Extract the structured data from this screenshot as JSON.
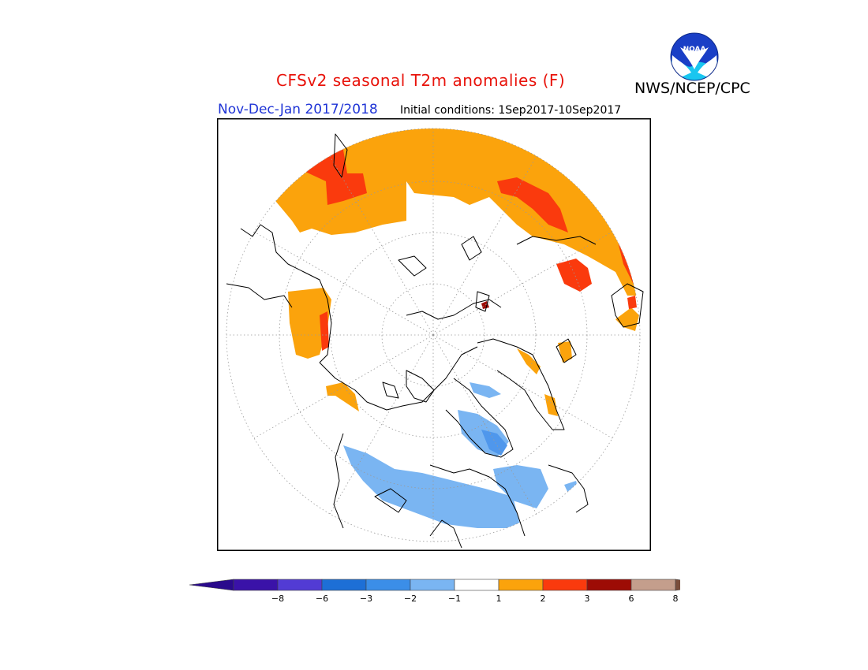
{
  "title": "CFSv2 seasonal T2m anomalies (F)",
  "agency": "NWS/NCEP/CPC",
  "logo_text": "NOAA",
  "season": "Nov-Dec-Jan 2017/2018",
  "initial_conditions": "Initial conditions: 1Sep2017-10Sep2017",
  "colors": {
    "title": "#e8130b",
    "season": "#1f34d6",
    "warm_1_2": "#fba30c",
    "warm_2_3": "#fa3a0d",
    "cool_1_2": "#7ab5f2",
    "cool_2_3": "#4f97ec"
  },
  "colorbar": {
    "tick_labels": [
      "-8",
      "-6",
      "-3",
      "-2",
      "-1",
      "1",
      "2",
      "3",
      "6",
      "8"
    ],
    "bins": [
      {
        "color": "#3a12a8"
      },
      {
        "color": "#523bd4"
      },
      {
        "color": "#1d6fd6"
      },
      {
        "color": "#3b8ee8"
      },
      {
        "color": "#7ab5f2"
      },
      {
        "color": "#ffffff"
      },
      {
        "color": "#fba30c"
      },
      {
        "color": "#fa3a0d"
      },
      {
        "color": "#9d0c05"
      },
      {
        "color": "#c49e8c"
      }
    ],
    "low_extension_color": "#2a0a8c",
    "high_extension_color": "#7a4e3c"
  }
}
